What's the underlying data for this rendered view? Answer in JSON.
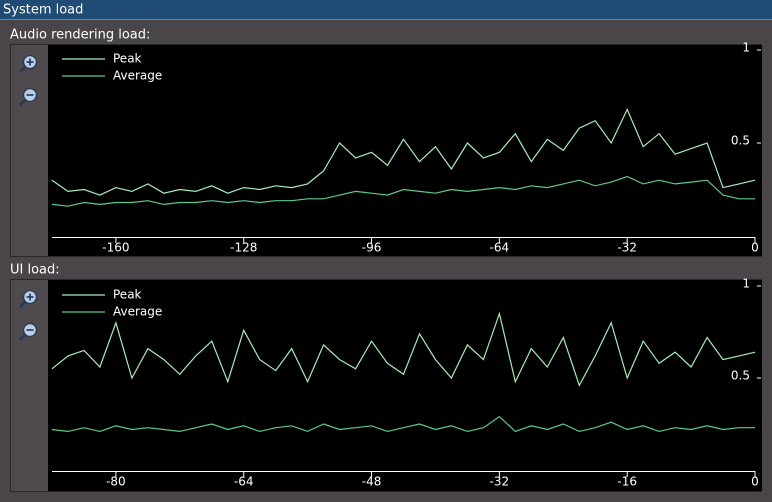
{
  "window_title": "System load",
  "chart_data": [
    {
      "type": "line",
      "title": "Audio rendering load:",
      "x": [
        -176,
        -172,
        -168,
        -164,
        -160,
        -156,
        -152,
        -148,
        -144,
        -140,
        -136,
        -132,
        -128,
        -124,
        -120,
        -116,
        -112,
        -108,
        -104,
        -100,
        -96,
        -92,
        -88,
        -84,
        -80,
        -76,
        -72,
        -68,
        -64,
        -60,
        -56,
        -52,
        -48,
        -44,
        -40,
        -36,
        -32,
        -28,
        -24,
        -20,
        -16,
        -12,
        -8,
        -4,
        0
      ],
      "series": [
        {
          "name": "Peak",
          "color": "#a6ecbb",
          "values": [
            0.3,
            0.24,
            0.25,
            0.22,
            0.26,
            0.24,
            0.28,
            0.23,
            0.25,
            0.24,
            0.27,
            0.23,
            0.26,
            0.25,
            0.27,
            0.26,
            0.28,
            0.35,
            0.5,
            0.42,
            0.45,
            0.38,
            0.52,
            0.4,
            0.48,
            0.36,
            0.5,
            0.42,
            0.45,
            0.55,
            0.4,
            0.52,
            0.46,
            0.58,
            0.62,
            0.5,
            0.68,
            0.48,
            0.55,
            0.44,
            0.47,
            0.5,
            0.26,
            0.28,
            0.3
          ]
        },
        {
          "name": "Average",
          "color": "#5fc98a",
          "values": [
            0.17,
            0.16,
            0.18,
            0.17,
            0.18,
            0.18,
            0.19,
            0.17,
            0.18,
            0.18,
            0.19,
            0.18,
            0.19,
            0.18,
            0.19,
            0.19,
            0.2,
            0.2,
            0.22,
            0.24,
            0.23,
            0.22,
            0.25,
            0.24,
            0.23,
            0.25,
            0.24,
            0.25,
            0.26,
            0.25,
            0.27,
            0.26,
            0.28,
            0.3,
            0.27,
            0.29,
            0.32,
            0.28,
            0.3,
            0.28,
            0.29,
            0.3,
            0.22,
            0.2,
            0.2
          ]
        }
      ],
      "xlim": [
        -176,
        0
      ],
      "xticks": [
        -160,
        -128,
        -96,
        -64,
        -32,
        0
      ],
      "ylim": [
        0,
        1
      ],
      "yticks": [
        0.5,
        1
      ],
      "legend": "upper left"
    },
    {
      "type": "line",
      "title": "UI load:",
      "x": [
        -88,
        -86,
        -84,
        -82,
        -80,
        -78,
        -76,
        -74,
        -72,
        -70,
        -68,
        -66,
        -64,
        -62,
        -60,
        -58,
        -56,
        -54,
        -52,
        -50,
        -48,
        -46,
        -44,
        -42,
        -40,
        -38,
        -36,
        -34,
        -32,
        -30,
        -28,
        -26,
        -24,
        -22,
        -20,
        -18,
        -16,
        -14,
        -12,
        -10,
        -8,
        -6,
        -4,
        -2,
        0
      ],
      "series": [
        {
          "name": "Peak",
          "color": "#a6ecbb",
          "values": [
            0.55,
            0.62,
            0.65,
            0.56,
            0.8,
            0.5,
            0.66,
            0.6,
            0.52,
            0.62,
            0.7,
            0.48,
            0.76,
            0.6,
            0.54,
            0.66,
            0.48,
            0.68,
            0.6,
            0.55,
            0.7,
            0.58,
            0.52,
            0.74,
            0.6,
            0.5,
            0.68,
            0.6,
            0.85,
            0.48,
            0.66,
            0.56,
            0.72,
            0.46,
            0.62,
            0.8,
            0.5,
            0.7,
            0.58,
            0.64,
            0.56,
            0.72,
            0.6,
            0.62,
            0.64
          ]
        },
        {
          "name": "Average",
          "color": "#5fc98a",
          "values": [
            0.22,
            0.21,
            0.23,
            0.21,
            0.24,
            0.22,
            0.23,
            0.22,
            0.21,
            0.23,
            0.25,
            0.22,
            0.24,
            0.21,
            0.23,
            0.24,
            0.21,
            0.25,
            0.22,
            0.23,
            0.24,
            0.21,
            0.23,
            0.25,
            0.22,
            0.24,
            0.21,
            0.23,
            0.29,
            0.21,
            0.24,
            0.22,
            0.25,
            0.21,
            0.23,
            0.26,
            0.22,
            0.24,
            0.21,
            0.23,
            0.22,
            0.24,
            0.22,
            0.23,
            0.23
          ]
        }
      ],
      "xlim": [
        -88,
        0
      ],
      "xticks": [
        -80,
        -64,
        -48,
        -32,
        -16,
        0
      ],
      "ylim": [
        0,
        1
      ],
      "yticks": [
        0.5,
        1
      ],
      "legend": "upper left"
    }
  ]
}
